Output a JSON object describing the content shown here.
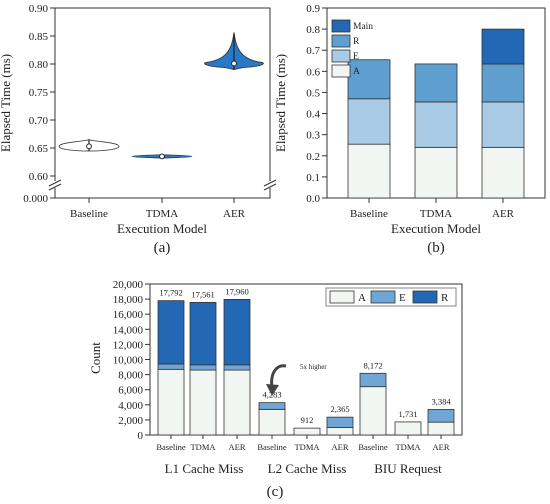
{
  "charts": {
    "a": {
      "caption": "(a)",
      "ylabel": "Elapsed Time (ms)",
      "xlabel": "Execution Model",
      "yticks": [
        "0.000",
        "0.60",
        "0.65",
        "0.70",
        "0.75",
        "0.80",
        "0.85",
        "0.90"
      ]
    },
    "b": {
      "caption": "(b)",
      "ylabel": "Elapsed Time (ms)",
      "xlabel": "Execution Model",
      "yticks": [
        "0.0",
        "0.1",
        "0.2",
        "0.3",
        "0.4",
        "0.5",
        "0.6",
        "0.7",
        "0.8",
        "0.9"
      ]
    },
    "c": {
      "caption": "(c)",
      "ylabel": "Count",
      "yticks": [
        "0",
        "2,000",
        "4,000",
        "6,000",
        "8,000",
        "10,000",
        "12,000",
        "14,000",
        "16,000",
        "18,000",
        "20,000"
      ],
      "annotation": "5x higher"
    }
  },
  "chart_data": [
    {
      "id": "a",
      "type": "violin",
      "xlabel": "Execution Model",
      "ylabel": "Elapsed Time (ms)",
      "categories": [
        "Baseline",
        "TDMA",
        "AER"
      ],
      "median": [
        0.653,
        0.635,
        0.801
      ],
      "range": [
        [
          0.645,
          0.665
        ],
        [
          0.632,
          0.638
        ],
        [
          0.79,
          0.856
        ]
      ],
      "ylim": [
        0.6,
        0.9
      ],
      "broken_axis": true,
      "colors": [
        "#ffffff",
        "#2a78c8",
        "#2a78c8"
      ]
    },
    {
      "id": "b",
      "type": "bar",
      "stacked": true,
      "xlabel": "Execution Model",
      "ylabel": "Elapsed Time (ms)",
      "categories": [
        "Baseline",
        "TDMA",
        "AER"
      ],
      "series": [
        {
          "name": "A",
          "values": [
            0.255,
            0.24,
            0.24
          ],
          "color": "#f2f6f2"
        },
        {
          "name": "E",
          "values": [
            0.215,
            0.215,
            0.215
          ],
          "color": "#a9cbe6"
        },
        {
          "name": "R",
          "values": [
            0.185,
            0.18,
            0.18
          ],
          "color": "#5e9fd0"
        },
        {
          "name": "Main",
          "values": [
            0,
            0,
            0.165
          ],
          "color": "#2268b4"
        }
      ],
      "ylim": [
        0,
        0.9
      ],
      "legend": "top-left"
    },
    {
      "id": "c",
      "type": "bar",
      "stacked": true,
      "ylabel": "Count",
      "groups": [
        "L1 Cache Miss",
        "L2 Cache Miss",
        "BIU Request"
      ],
      "categories": [
        "Baseline",
        "TDMA",
        "AER",
        "Baseline",
        "TDMA",
        "AER",
        "Baseline",
        "TDMA",
        "AER"
      ],
      "totals": [
        "17,792",
        "17,561",
        "17,960",
        "4,283",
        "912",
        "2,365",
        "8,172",
        "1,731",
        "3,384"
      ],
      "series": [
        {
          "name": "A",
          "values": [
            8700,
            8600,
            8600,
            3400,
            912,
            1000,
            6400,
            1731,
            1700
          ],
          "color": "#f2f6f2"
        },
        {
          "name": "E",
          "values": [
            700,
            700,
            700,
            883,
            0,
            1365,
            1772,
            0,
            1684
          ],
          "color": "#6fa6d6"
        },
        {
          "name": "R",
          "values": [
            8392,
            8261,
            8660,
            0,
            0,
            0,
            0,
            0,
            0
          ],
          "color": "#2268b4"
        }
      ],
      "ylim": [
        0,
        20000
      ],
      "legend": "top-right",
      "annotation": "5x higher"
    }
  ]
}
